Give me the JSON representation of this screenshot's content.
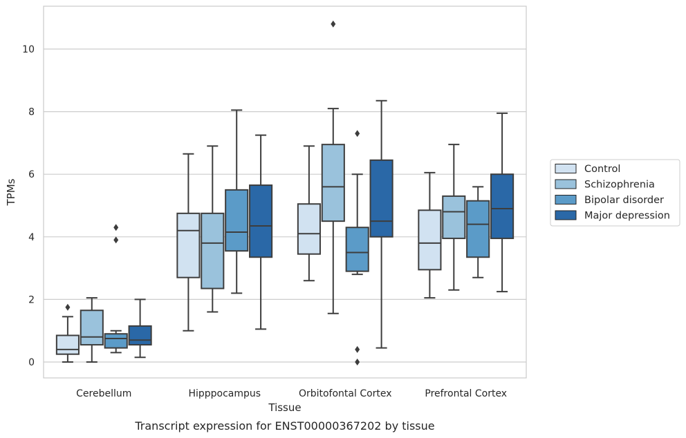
{
  "chart_data": {
    "type": "box",
    "xlabel": "Tissue",
    "ylabel": "TPMs",
    "caption": "Transcript expression for ENST00000367202 by tissue",
    "ylim": [
      -0.5,
      11.35
    ],
    "yticks": [
      0,
      2,
      4,
      6,
      8,
      10
    ],
    "grid": "horizontal",
    "legend_position": "right",
    "categories": [
      "Cerebellum",
      "Hipppocampus",
      "Orbitofontal Cortex",
      "Prefrontal Cortex"
    ],
    "series": [
      {
        "name": "Control",
        "color": "#d1e2f1",
        "boxes": [
          {
            "whisker_low": 0.0,
            "q1": 0.25,
            "median": 0.4,
            "q3": 0.85,
            "whisker_high": 1.45,
            "outliers": [
              1.75
            ]
          },
          {
            "whisker_low": 1.0,
            "q1": 2.7,
            "median": 4.2,
            "q3": 4.75,
            "whisker_high": 6.65,
            "outliers": []
          },
          {
            "whisker_low": 2.6,
            "q1": 3.45,
            "median": 4.1,
            "q3": 5.05,
            "whisker_high": 6.9,
            "outliers": []
          },
          {
            "whisker_low": 2.05,
            "q1": 2.95,
            "median": 3.8,
            "q3": 4.85,
            "whisker_high": 6.05,
            "outliers": []
          }
        ]
      },
      {
        "name": "Schizophrenia",
        "color": "#9ac2dc",
        "boxes": [
          {
            "whisker_low": 0.0,
            "q1": 0.55,
            "median": 0.8,
            "q3": 1.65,
            "whisker_high": 2.05,
            "outliers": []
          },
          {
            "whisker_low": 1.6,
            "q1": 2.35,
            "median": 3.8,
            "q3": 4.75,
            "whisker_high": 6.9,
            "outliers": []
          },
          {
            "whisker_low": 1.55,
            "q1": 4.5,
            "median": 5.6,
            "q3": 6.95,
            "whisker_high": 8.1,
            "outliers": [
              10.8
            ]
          },
          {
            "whisker_low": 2.3,
            "q1": 3.95,
            "median": 4.8,
            "q3": 5.3,
            "whisker_high": 6.95,
            "outliers": []
          }
        ]
      },
      {
        "name": "Bipolar disorder",
        "color": "#5b9bc8",
        "boxes": [
          {
            "whisker_low": 0.3,
            "q1": 0.45,
            "median": 0.75,
            "q3": 0.9,
            "whisker_high": 1.0,
            "outliers": [
              3.9,
              4.3
            ]
          },
          {
            "whisker_low": 2.2,
            "q1": 3.55,
            "median": 4.15,
            "q3": 5.5,
            "whisker_high": 8.05,
            "outliers": []
          },
          {
            "whisker_low": 2.8,
            "q1": 2.9,
            "median": 3.5,
            "q3": 4.3,
            "whisker_high": 6.0,
            "outliers": [
              7.3,
              0.0,
              0.4
            ]
          },
          {
            "whisker_low": 2.7,
            "q1": 3.35,
            "median": 4.4,
            "q3": 5.15,
            "whisker_high": 5.6,
            "outliers": []
          }
        ]
      },
      {
        "name": "Major depression",
        "color": "#2a68a7",
        "boxes": [
          {
            "whisker_low": 0.15,
            "q1": 0.55,
            "median": 0.7,
            "q3": 1.15,
            "whisker_high": 2.0,
            "outliers": []
          },
          {
            "whisker_low": 1.05,
            "q1": 3.35,
            "median": 4.35,
            "q3": 5.65,
            "whisker_high": 7.25,
            "outliers": []
          },
          {
            "whisker_low": 0.45,
            "q1": 4.0,
            "median": 4.5,
            "q3": 6.45,
            "whisker_high": 8.35,
            "outliers": []
          },
          {
            "whisker_low": 2.25,
            "q1": 3.95,
            "median": 4.9,
            "q3": 6.0,
            "whisker_high": 7.95,
            "outliers": []
          }
        ]
      }
    ]
  }
}
